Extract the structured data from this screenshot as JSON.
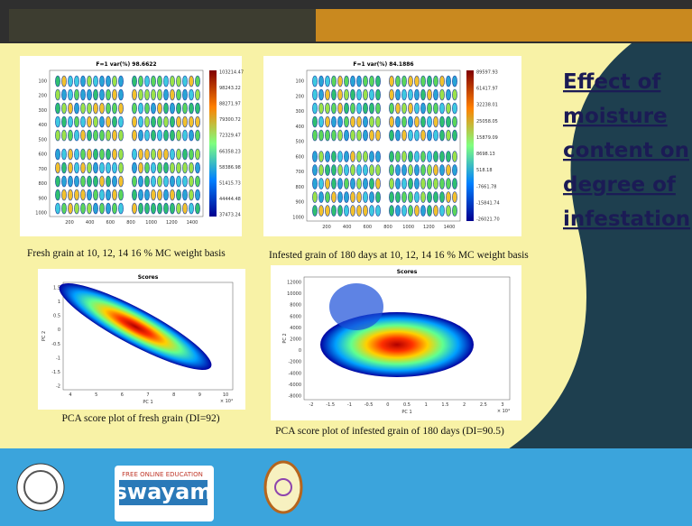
{
  "header": {
    "title_lines": [
      "Effect of",
      "moisture",
      "content on",
      "degree of",
      "infestation"
    ]
  },
  "panels": [
    {
      "title": "F=1 var(%) 98.6622",
      "yticks": [
        "100",
        "200",
        "300",
        "400",
        "500",
        "600",
        "700",
        "800",
        "900",
        "1000"
      ],
      "xticks": [
        "200",
        "400",
        "600",
        "800",
        "1000",
        "1200",
        "1400"
      ],
      "colorbar": [
        "103214.47",
        "98243.22",
        "88271.97",
        "79300.72",
        "72329.47",
        "66358.23",
        "58386.98",
        "51415.73",
        "44444.48",
        "37473.24"
      ],
      "caption": "Fresh grain at 10, 12, 14  16  % MC weight basis"
    },
    {
      "title": "F=1 var(%) 84.1886",
      "yticks": [
        "100",
        "200",
        "300",
        "400",
        "500",
        "600",
        "700",
        "800",
        "900",
        "1000"
      ],
      "xticks": [
        "200",
        "400",
        "600",
        "800",
        "1000",
        "1200",
        "1400"
      ],
      "colorbar": [
        "89597.93",
        "61417.97",
        "32238.01",
        "25058.05",
        "15879.09",
        "8698.13",
        "518.18",
        "-7661.78",
        "-15841.74",
        "-26021.70"
      ],
      "caption": "Infested grain of 180 days at 10, 12, 14  16  % MC weight basis"
    },
    {
      "title": "Scores",
      "xlabel": "PC 1",
      "ylabel": "PC 2",
      "exponent": "× 10⁴",
      "yticks": [
        "1.5",
        "1",
        "0.5",
        "0",
        "-0.5",
        "-1",
        "-1.5",
        "-2"
      ],
      "xticks": [
        "4",
        "5",
        "6",
        "7",
        "8",
        "9",
        "10"
      ],
      "caption": "PCA score plot of fresh grain (DI=92)"
    },
    {
      "title": "Scores",
      "xlabel": "PC 1",
      "ylabel": "PC 2",
      "exponent": "× 10⁴",
      "yticks": [
        "12000",
        "10000",
        "8000",
        "6000",
        "4000",
        "2000",
        "0",
        "-2000",
        "-4000",
        "-6000",
        "-8000"
      ],
      "xticks": [
        "-2",
        "-1.5",
        "-1",
        "-0.5",
        "0",
        "0.5",
        "1",
        "1.5",
        "2",
        "2.5",
        "3"
      ],
      "caption": "PCA score plot of infested grain of 180 days (DI=90.5)"
    }
  ],
  "footer": {
    "tagline": "FREE ONLINE EDUCATION",
    "brand": "swayam"
  }
}
